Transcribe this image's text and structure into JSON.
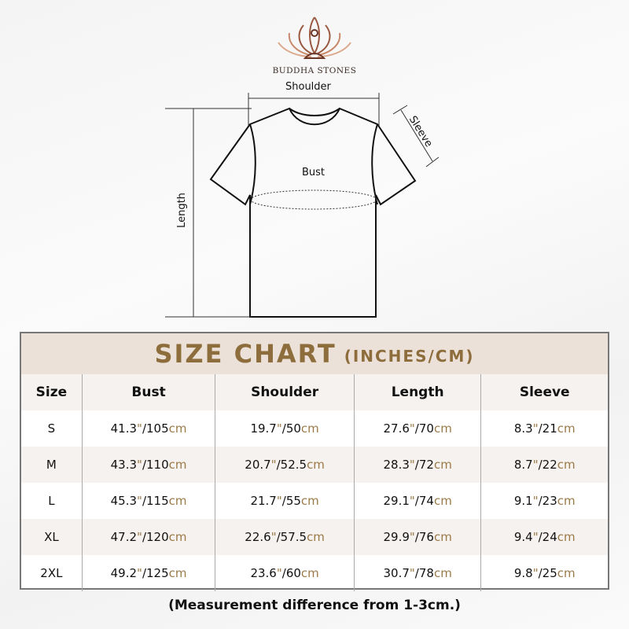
{
  "brand": {
    "name": "BUDDHA STONES"
  },
  "diagram": {
    "shoulder": "Shoulder",
    "sleeve": "Sleeve",
    "bust": "Bust",
    "length": "Length"
  },
  "table": {
    "title": "SIZE CHART",
    "title_unit": "(INCHES/CM)",
    "headers": [
      "Size",
      "Bust",
      "Shoulder",
      "Length",
      "Sleeve"
    ],
    "unit_in": "\"",
    "unit_cm": "cm",
    "rows": [
      {
        "size": "S",
        "bust": [
          "41.3",
          "105"
        ],
        "shoulder": [
          "19.7",
          "50"
        ],
        "length": [
          "27.6",
          "70"
        ],
        "sleeve": [
          "8.3",
          "21"
        ]
      },
      {
        "size": "M",
        "bust": [
          "43.3",
          "110"
        ],
        "shoulder": [
          "20.7",
          "52.5"
        ],
        "length": [
          "28.3",
          "72"
        ],
        "sleeve": [
          "8.7",
          "22"
        ]
      },
      {
        "size": "L",
        "bust": [
          "45.3",
          "115"
        ],
        "shoulder": [
          "21.7",
          "55"
        ],
        "length": [
          "29.1",
          "74"
        ],
        "sleeve": [
          "9.1",
          "23"
        ]
      },
      {
        "size": "XL",
        "bust": [
          "47.2",
          "120"
        ],
        "shoulder": [
          "22.6",
          "57.5"
        ],
        "length": [
          "29.9",
          "76"
        ],
        "sleeve": [
          "9.4",
          "24"
        ]
      },
      {
        "size": "2XL",
        "bust": [
          "49.2",
          "125"
        ],
        "shoulder": [
          "23.6",
          "60"
        ],
        "length": [
          "30.7",
          "78"
        ],
        "sleeve": [
          "9.8",
          "25"
        ]
      }
    ]
  },
  "note": "(Measurement difference from 1-3cm.)",
  "colors": {
    "accent": "#8e6d3c",
    "band": "#ece1d8",
    "logo": "#8a4a35"
  }
}
